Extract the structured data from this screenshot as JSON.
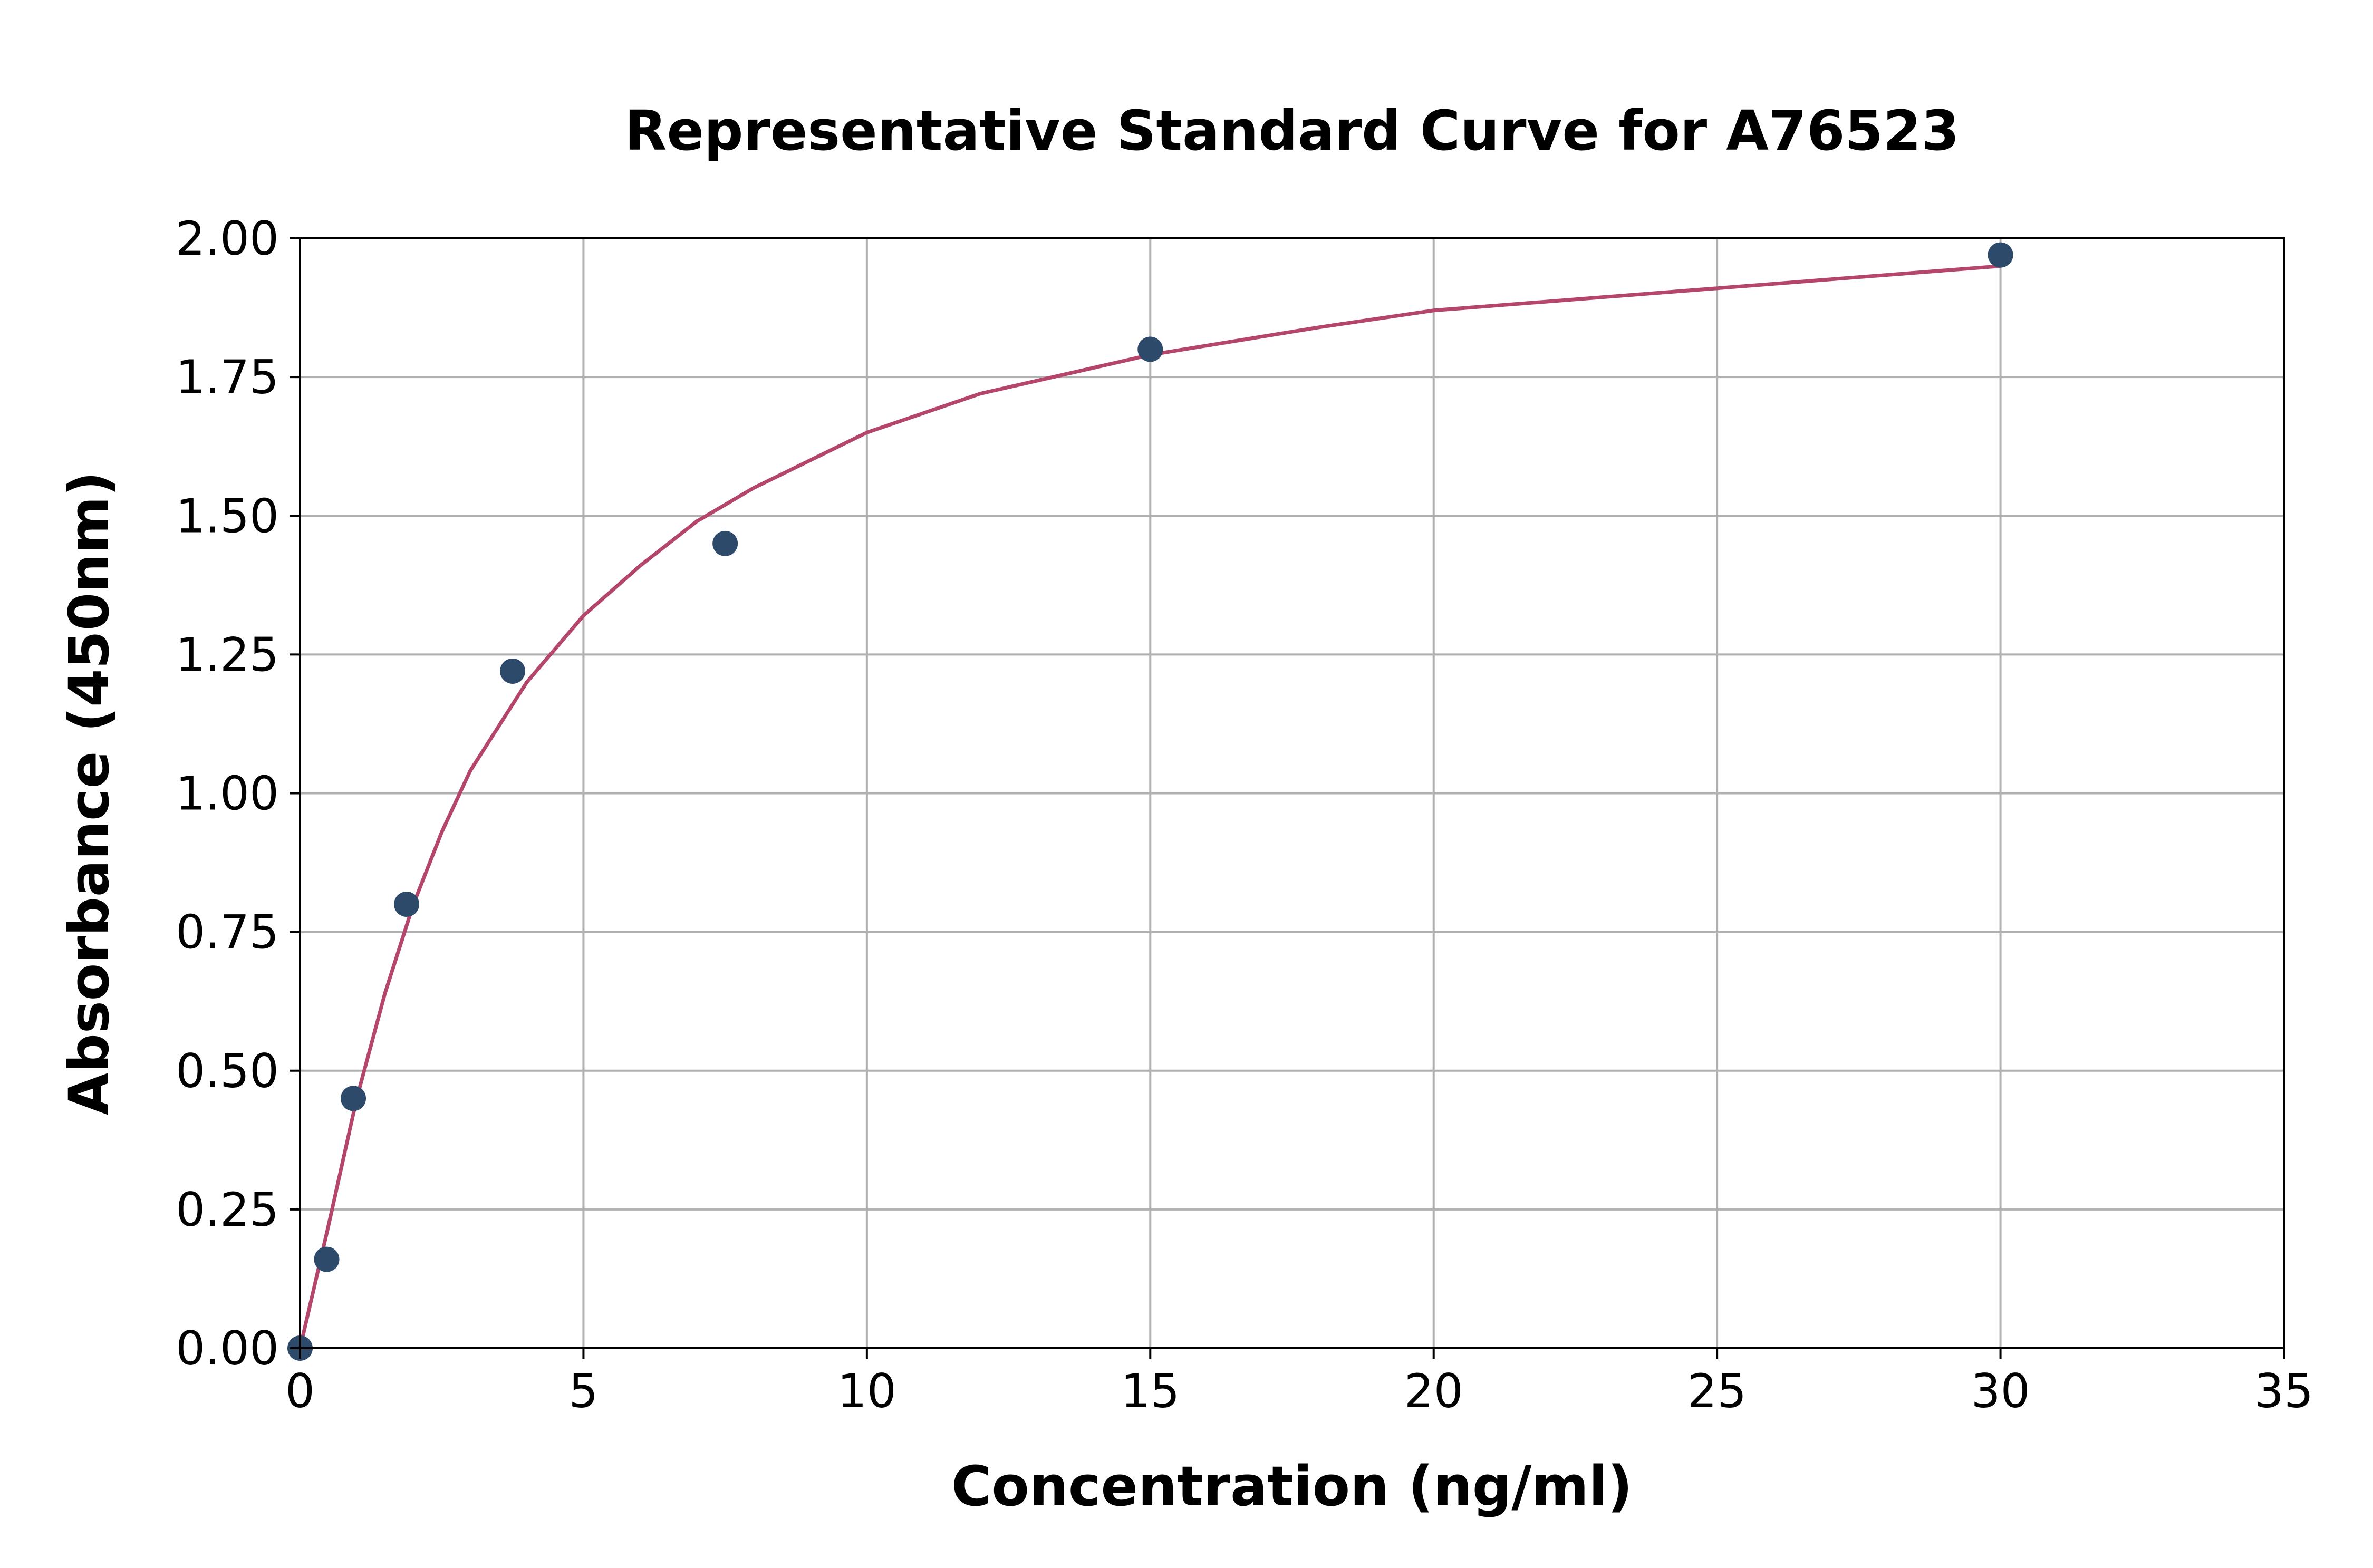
{
  "chart_data": {
    "type": "scatter",
    "title": "Representative Standard Curve for A76523",
    "xlabel": "Concentration (ng/ml)",
    "ylabel": "Absorbance (450nm)",
    "xlim": [
      0,
      35
    ],
    "ylim": [
      0,
      2
    ],
    "xticks": [
      0,
      5,
      10,
      15,
      20,
      25,
      30,
      35
    ],
    "xtick_labels": [
      "0",
      "5",
      "10",
      "15",
      "20",
      "25",
      "30",
      "35"
    ],
    "yticks": [
      0,
      0.25,
      0.5,
      0.75,
      1.0,
      1.25,
      1.5,
      1.75,
      2.0
    ],
    "ytick_labels": [
      "0.00",
      "0.25",
      "0.50",
      "0.75",
      "1.00",
      "1.25",
      "1.50",
      "1.75",
      "2.00"
    ],
    "grid": true,
    "legend": "none",
    "series": [
      {
        "kind": "points",
        "color": "#2e4a6b",
        "points": [
          {
            "x": 0,
            "y": 0.0
          },
          {
            "x": 0.47,
            "y": 0.16
          },
          {
            "x": 0.94,
            "y": 0.45
          },
          {
            "x": 1.88,
            "y": 0.8
          },
          {
            "x": 3.75,
            "y": 1.22
          },
          {
            "x": 7.5,
            "y": 1.45
          },
          {
            "x": 15,
            "y": 1.8
          },
          {
            "x": 30,
            "y": 1.97
          }
        ]
      },
      {
        "kind": "fitted-curve",
        "color": "#b5466b",
        "points": [
          {
            "x": 0,
            "y": 0.0
          },
          {
            "x": 0.5,
            "y": 0.22
          },
          {
            "x": 1,
            "y": 0.45
          },
          {
            "x": 1.5,
            "y": 0.64
          },
          {
            "x": 2,
            "y": 0.8
          },
          {
            "x": 2.5,
            "y": 0.93
          },
          {
            "x": 3,
            "y": 1.04
          },
          {
            "x": 4,
            "y": 1.2
          },
          {
            "x": 5,
            "y": 1.32
          },
          {
            "x": 6,
            "y": 1.41
          },
          {
            "x": 7,
            "y": 1.49
          },
          {
            "x": 8,
            "y": 1.55
          },
          {
            "x": 10,
            "y": 1.65
          },
          {
            "x": 12,
            "y": 1.72
          },
          {
            "x": 15,
            "y": 1.79
          },
          {
            "x": 18,
            "y": 1.84
          },
          {
            "x": 20,
            "y": 1.87
          },
          {
            "x": 25,
            "y": 1.91
          },
          {
            "x": 30,
            "y": 1.95
          }
        ]
      }
    ],
    "colors": {
      "axis": "#000000",
      "grid": "#b0b0b0",
      "points": "#2e4a6b",
      "curve": "#b5466b"
    }
  }
}
